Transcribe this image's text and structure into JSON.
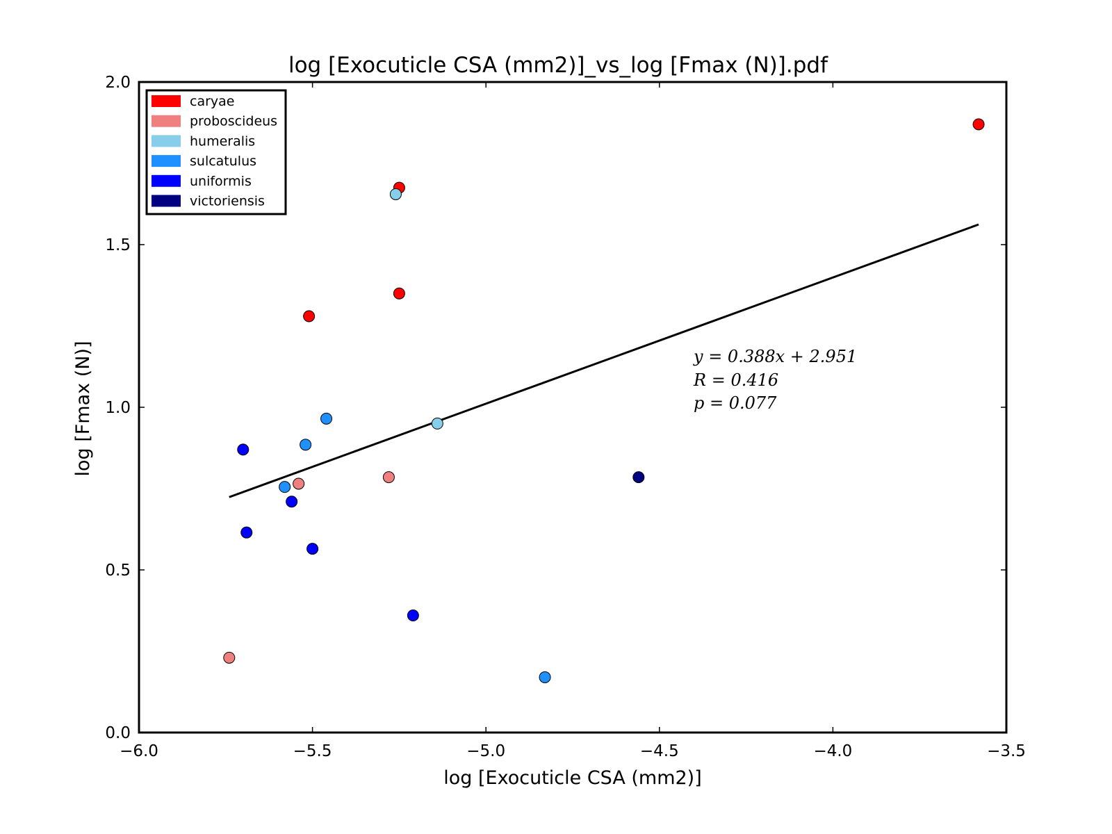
{
  "chart_data": {
    "type": "scatter",
    "title": "log [Exocuticle CSA (mm2)]_vs_log [Fmax (N)].pdf",
    "xlabel": "log [Exocuticle CSA (mm2)]",
    "ylabel": "log [Fmax (N)]",
    "xlim": [
      -6.0,
      -3.5
    ],
    "ylim": [
      0.0,
      2.0
    ],
    "xticks": [
      -6.0,
      -5.5,
      -5.0,
      -4.5,
      -4.0,
      -3.5
    ],
    "xtick_labels": [
      "−6.0",
      "−5.5",
      "−5.0",
      "−4.5",
      "−4.0",
      "−3.5"
    ],
    "yticks": [
      0.0,
      0.5,
      1.0,
      1.5,
      2.0
    ],
    "ytick_labels": [
      "0.0",
      "0.5",
      "1.0",
      "1.5",
      "2.0"
    ],
    "grid": false,
    "legend_position": "top-left",
    "series": [
      {
        "name": "caryae",
        "color": "#ff0000",
        "points": [
          [
            -5.25,
            1.675
          ],
          [
            -5.25,
            1.35
          ],
          [
            -5.51,
            1.28
          ],
          [
            -3.58,
            1.87
          ]
        ]
      },
      {
        "name": "proboscideus",
        "color": "#f08080",
        "points": [
          [
            -5.54,
            0.765
          ],
          [
            -5.28,
            0.785
          ],
          [
            -5.74,
            0.23
          ]
        ]
      },
      {
        "name": "humeralis",
        "color": "#87ceeb",
        "points": [
          [
            -5.26,
            1.655
          ],
          [
            -5.14,
            0.95
          ]
        ]
      },
      {
        "name": "sulcatulus",
        "color": "#1e90ff",
        "points": [
          [
            -5.46,
            0.965
          ],
          [
            -5.52,
            0.885
          ],
          [
            -5.58,
            0.755
          ],
          [
            -4.83,
            0.17
          ]
        ]
      },
      {
        "name": "uniformis",
        "color": "#0000ff",
        "points": [
          [
            -5.7,
            0.87
          ],
          [
            -5.56,
            0.71
          ],
          [
            -5.69,
            0.615
          ],
          [
            -5.5,
            0.565
          ],
          [
            -5.21,
            0.36
          ]
        ]
      },
      {
        "name": "victoriensis",
        "color": "#000080",
        "points": [
          [
            -4.56,
            0.785
          ]
        ]
      }
    ],
    "fit_line": {
      "slope": 0.388,
      "intercept": 2.951,
      "x_range": [
        -5.74,
        -3.58
      ],
      "color": "#000000"
    },
    "annotation": [
      "y = 0.388x + 2.951",
      "R = 0.416",
      "p = 0.077"
    ]
  }
}
